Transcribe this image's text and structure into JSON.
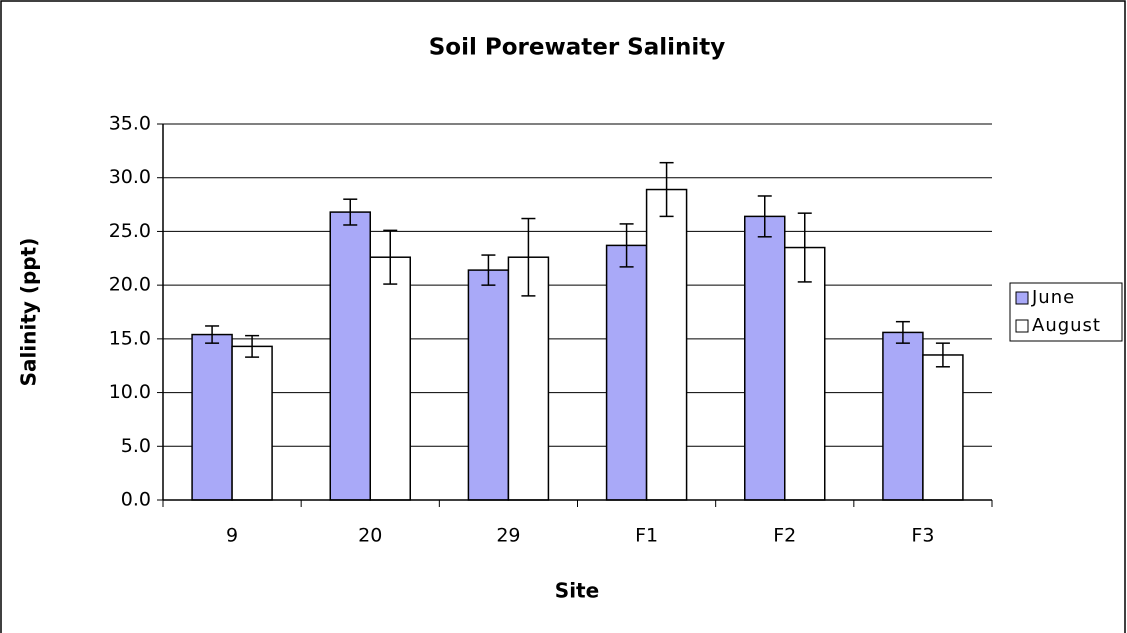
{
  "chart_data": {
    "type": "bar",
    "title": "Soil Porewater Salinity",
    "x_label": "Site",
    "y_label": "Salinity (ppt)",
    "categories": [
      "9",
      "20",
      "29",
      "F1",
      "F2",
      "F3"
    ],
    "series": [
      {
        "name": "June",
        "color": "#a9a9f8",
        "values": [
          15.4,
          26.8,
          21.4,
          23.7,
          26.4,
          15.6
        ],
        "errors": [
          0.8,
          1.2,
          1.4,
          2.0,
          1.9,
          1.0
        ]
      },
      {
        "name": "August",
        "color": "#ffffff",
        "values": [
          14.3,
          22.6,
          22.6,
          28.9,
          23.5,
          13.5
        ],
        "errors": [
          1.0,
          2.5,
          3.6,
          2.5,
          3.2,
          1.1
        ]
      }
    ],
    "ylim": [
      0,
      35
    ],
    "yticks": [
      {
        "value": 0,
        "label": "0.0"
      },
      {
        "value": 5,
        "label": "5.0"
      },
      {
        "value": 10,
        "label": "10.0"
      },
      {
        "value": 15,
        "label": "15.0"
      },
      {
        "value": 20,
        "label": "20.0"
      },
      {
        "value": 25,
        "label": "25.0"
      },
      {
        "value": 30,
        "label": "30.0"
      },
      {
        "value": 35,
        "label": "35.0"
      }
    ],
    "grid": true,
    "legend": "right"
  }
}
